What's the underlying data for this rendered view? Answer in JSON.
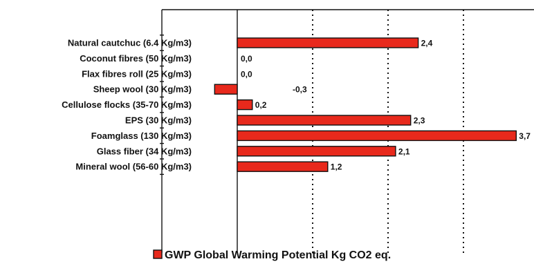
{
  "chart_data": {
    "type": "bar",
    "orientation": "horizontal",
    "categories": [
      "Natural cautchuc (6.4 Kg/m3)",
      "Coconut fibres (50 Kg/m3)",
      "Flax fibres roll (25 Kg/m3)",
      "Sheep wool (30 Kg/m3)",
      "Cellulose flocks (35-70 Kg/m3)",
      "EPS (30 Kg/m3)",
      "Foamglass (130 Kg/m3)",
      "Glass fiber (34 Kg/m3)",
      "Mineral wool (56-60 Kg/m3)"
    ],
    "series": [
      {
        "name": "GWP  Global Warming Potential Kg CO2 eq.",
        "values": [
          2.4,
          0.0,
          0.0,
          -0.3,
          0.2,
          2.3,
          3.7,
          2.1,
          1.2
        ],
        "value_labels": [
          "2,4",
          "0,0",
          "0,0",
          "-0,3",
          "0,2",
          "2,3",
          "3,7",
          "2,1",
          "1,2"
        ],
        "color": "#e8291c"
      }
    ],
    "xlim": [
      -1,
      4
    ],
    "gridlines_x": [
      1,
      2,
      3
    ],
    "grid_style": "dotted vertical",
    "legend": "bottom",
    "title": "",
    "xlabel": "",
    "ylabel": ""
  }
}
